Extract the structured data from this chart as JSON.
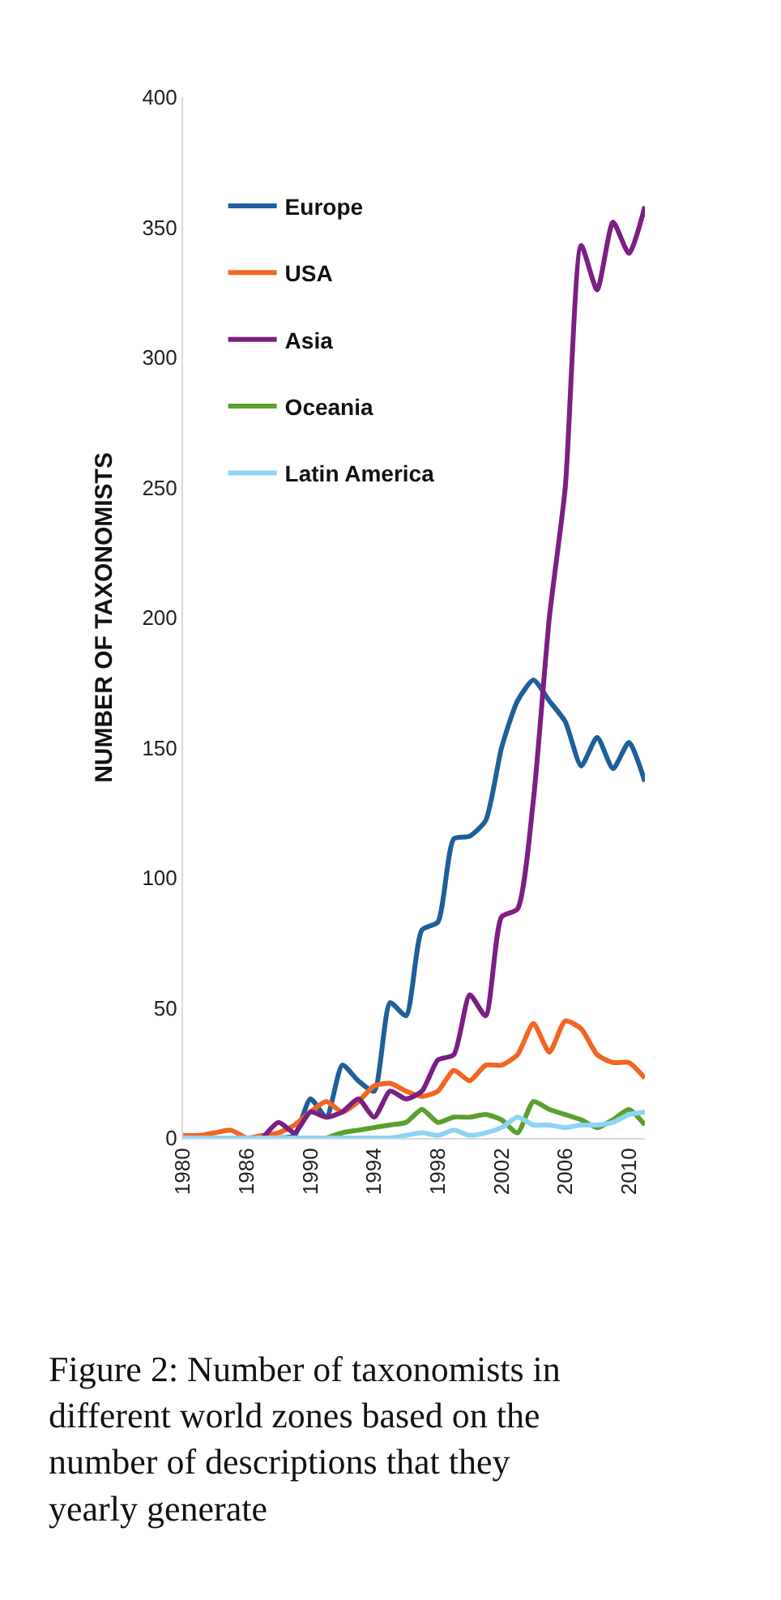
{
  "chart_data": {
    "type": "line",
    "ylabel": "NUMBER OF TAXONOMISTS",
    "categories": [
      "1980",
      null,
      null,
      null,
      "1986",
      null,
      null,
      null,
      "1990",
      null,
      null,
      null,
      "1994",
      null,
      null,
      null,
      "1998",
      null,
      null,
      null,
      "2002",
      null,
      null,
      null,
      "2006",
      null,
      null,
      null,
      "2010",
      null
    ],
    "ylim": [
      0,
      400
    ],
    "yticks": [
      0,
      50,
      100,
      150,
      200,
      250,
      300,
      350,
      400
    ],
    "series": [
      {
        "name": "Europe",
        "color": "#1f5f99",
        "values": [
          null,
          null,
          null,
          null,
          null,
          0,
          0,
          1,
          15,
          8,
          28,
          22,
          18,
          52,
          47,
          80,
          83,
          115,
          116,
          122,
          150,
          168,
          176,
          168,
          160,
          143,
          154,
          142,
          152,
          137
        ]
      },
      {
        "name": "USA",
        "color": "#f26522",
        "values": [
          1,
          1,
          2,
          3,
          0,
          1,
          2,
          5,
          10,
          14,
          10,
          14,
          20,
          21,
          18,
          16,
          18,
          26,
          22,
          28,
          28,
          32,
          44,
          33,
          45,
          42,
          32,
          29,
          29,
          23
        ]
      },
      {
        "name": "Asia",
        "color": "#7b1f82",
        "values": [
          null,
          null,
          null,
          null,
          null,
          0,
          6,
          2,
          10,
          8,
          10,
          15,
          8,
          18,
          15,
          18,
          30,
          32,
          55,
          47,
          85,
          88,
          130,
          200,
          250,
          343,
          326,
          352,
          340,
          358
        ]
      },
      {
        "name": "Oceania",
        "color": "#5aa02c",
        "values": [
          null,
          null,
          null,
          null,
          null,
          null,
          null,
          null,
          null,
          0,
          2,
          3,
          4,
          5,
          6,
          11,
          6,
          8,
          8,
          9,
          7,
          2,
          14,
          11,
          9,
          7,
          4,
          7,
          11,
          5
        ]
      },
      {
        "name": "Latin America",
        "color": "#8fd3f5",
        "values": [
          0,
          0,
          0,
          0,
          0,
          0,
          0,
          0,
          0,
          0,
          0,
          0,
          0,
          0,
          1,
          2,
          1,
          3,
          1,
          2,
          4,
          8,
          5,
          5,
          4,
          5,
          5,
          6,
          9,
          10
        ]
      }
    ],
    "legend": "top left",
    "marker": "none",
    "line_style": "solid",
    "annotations": [
      "Figure 2: Number of taxonomists in different world zones based on the number of descriptions that they yearly generate"
    ]
  }
}
